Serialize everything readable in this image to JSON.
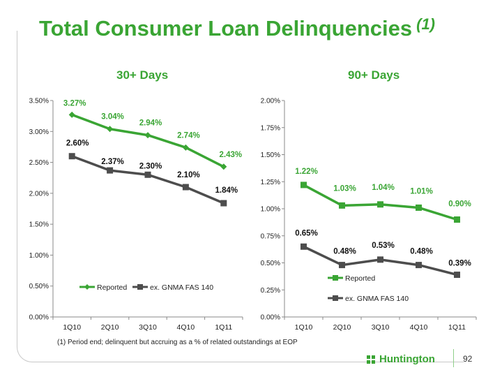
{
  "slide": {
    "title": "Total Consumer Loan Delinquencies",
    "title_note": "(1)",
    "footnote": "(1) Period end; delinquent but accruing as a % of related outstandings at EOP",
    "page_number": "92",
    "logo_text": "Huntington",
    "colors": {
      "green": "#3aa534",
      "gray": "#4d4d4d"
    }
  },
  "chart_data": [
    {
      "type": "line",
      "title": "30+ Days",
      "categories": [
        "1Q10",
        "2Q10",
        "3Q10",
        "4Q10",
        "1Q11"
      ],
      "ylim": [
        0,
        3.5
      ],
      "yticks": [
        "0.00%",
        "0.50%",
        "1.00%",
        "1.50%",
        "2.00%",
        "2.50%",
        "3.00%",
        "3.50%"
      ],
      "legend_placement": "bottom",
      "series": [
        {
          "name": "Reported",
          "color": "#3aa534",
          "marker": "diamond",
          "values": [
            3.27,
            3.04,
            2.94,
            2.74,
            2.43
          ],
          "labels": [
            "3.27%",
            "3.04%",
            "2.94%",
            "2.74%",
            "2.43%"
          ]
        },
        {
          "name": "ex. GNMA FAS 140",
          "color": "#4d4d4d",
          "marker": "square",
          "values": [
            2.6,
            2.37,
            2.3,
            2.1,
            1.84
          ],
          "labels": [
            "2.60%",
            "2.37%",
            "2.30%",
            "2.10%",
            "1.84%"
          ]
        }
      ]
    },
    {
      "type": "line",
      "title": "90+ Days",
      "categories": [
        "1Q10",
        "2Q10",
        "3Q10",
        "4Q10",
        "1Q11"
      ],
      "ylim": [
        0,
        2.0
      ],
      "yticks": [
        "0.00%",
        "0.25%",
        "0.50%",
        "0.75%",
        "1.00%",
        "1.25%",
        "1.50%",
        "1.75%",
        "2.00%"
      ],
      "legend_placement": "bottom-left",
      "series": [
        {
          "name": "Reported",
          "color": "#3aa534",
          "marker": "square",
          "values": [
            1.22,
            1.03,
            1.04,
            1.01,
            0.9
          ],
          "labels": [
            "1.22%",
            "1.03%",
            "1.04%",
            "1.01%",
            "0.90%"
          ]
        },
        {
          "name": "ex. GNMA FAS 140",
          "color": "#4d4d4d",
          "marker": "square",
          "values": [
            0.65,
            0.48,
            0.53,
            0.48,
            0.39
          ],
          "labels": [
            "0.65%",
            "0.48%",
            "0.53%",
            "0.48%",
            "0.39%"
          ]
        }
      ]
    }
  ]
}
